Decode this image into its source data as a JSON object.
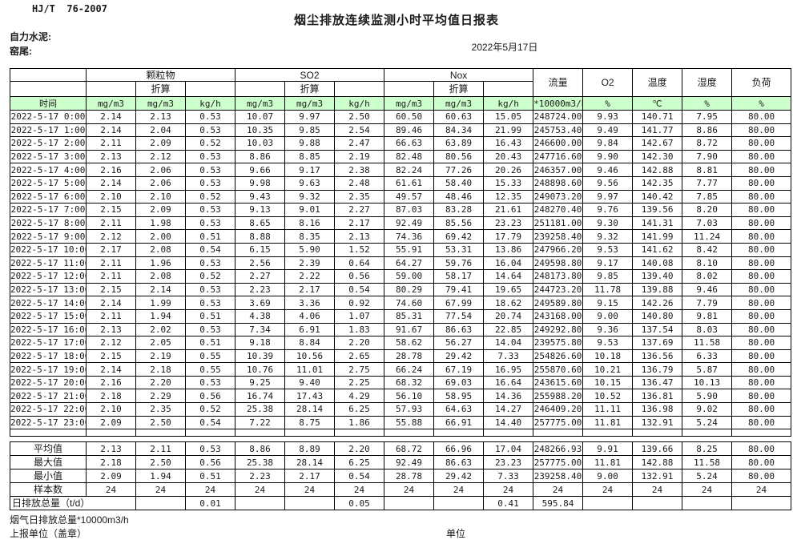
{
  "header": {
    "standard": "HJ/T  76-2007",
    "title": "烟尘排放连续监测小时平均值日报表",
    "company": "自力水泥:",
    "location": "窑尾:",
    "date": "2022年5月17日"
  },
  "colors": {
    "header_row_green": "#CCFFCC",
    "border": "#000000"
  },
  "table": {
    "col_groups": {
      "pm": "颗粒物",
      "so2": "SO2",
      "nox": "Nox",
      "flow": "流量",
      "o2": "O2",
      "temp": "温度",
      "humidity": "湿度",
      "load": "负荷"
    },
    "converted_label": "折算",
    "units": [
      "时间",
      "mg/m3",
      "mg/m3",
      "kg/h",
      "mg/m3",
      "mg/m3",
      "kg/h",
      "mg/m3",
      "mg/m3",
      "kg/h",
      "*10000m3/h",
      "%",
      "℃",
      "%",
      "%"
    ],
    "rows": [
      [
        "2022-5-17 0:00",
        "2.14",
        "2.13",
        "0.53",
        "10.07",
        "9.97",
        "2.50",
        "60.50",
        "60.63",
        "15.05",
        "248724.00",
        "9.93",
        "140.71",
        "7.95",
        "80.00"
      ],
      [
        "2022-5-17 1:00",
        "2.14",
        "2.04",
        "0.53",
        "10.35",
        "9.85",
        "2.54",
        "89.46",
        "84.34",
        "21.99",
        "245753.40",
        "9.49",
        "141.77",
        "8.86",
        "80.00"
      ],
      [
        "2022-5-17 2:00",
        "2.11",
        "2.09",
        "0.52",
        "10.03",
        "9.88",
        "2.47",
        "66.63",
        "63.89",
        "16.43",
        "246600.00",
        "9.84",
        "142.67",
        "8.72",
        "80.00"
      ],
      [
        "2022-5-17 3:00",
        "2.13",
        "2.12",
        "0.53",
        "8.86",
        "8.85",
        "2.19",
        "82.48",
        "80.56",
        "20.43",
        "247716.60",
        "9.90",
        "142.30",
        "7.90",
        "80.00"
      ],
      [
        "2022-5-17 4:00",
        "2.16",
        "2.06",
        "0.53",
        "9.66",
        "9.17",
        "2.38",
        "82.24",
        "77.26",
        "20.26",
        "246357.00",
        "9.46",
        "142.88",
        "8.81",
        "80.00"
      ],
      [
        "2022-5-17 5:00",
        "2.14",
        "2.06",
        "0.53",
        "9.98",
        "9.63",
        "2.48",
        "61.61",
        "58.40",
        "15.33",
        "248898.60",
        "9.56",
        "142.35",
        "7.77",
        "80.00"
      ],
      [
        "2022-5-17 6:00",
        "2.10",
        "2.10",
        "0.52",
        "9.43",
        "9.32",
        "2.35",
        "49.57",
        "48.46",
        "12.35",
        "249073.20",
        "9.97",
        "140.42",
        "7.85",
        "80.00"
      ],
      [
        "2022-5-17 7:00",
        "2.15",
        "2.09",
        "0.53",
        "9.13",
        "9.01",
        "2.27",
        "87.03",
        "83.28",
        "21.61",
        "248270.40",
        "9.76",
        "139.56",
        "8.20",
        "80.00"
      ],
      [
        "2022-5-17 8:00",
        "2.11",
        "1.98",
        "0.53",
        "8.65",
        "8.16",
        "2.17",
        "92.49",
        "85.56",
        "23.23",
        "251181.00",
        "9.30",
        "141.31",
        "7.03",
        "80.00"
      ],
      [
        "2022-5-17 9:00",
        "2.12",
        "2.00",
        "0.51",
        "8.88",
        "8.35",
        "2.13",
        "74.36",
        "69.42",
        "17.79",
        "239258.40",
        "9.32",
        "141.99",
        "11.24",
        "80.00"
      ],
      [
        "2022-5-17 10:00",
        "2.17",
        "2.08",
        "0.54",
        "6.15",
        "5.90",
        "1.52",
        "55.91",
        "53.31",
        "13.86",
        "247966.20",
        "9.53",
        "141.62",
        "8.42",
        "80.00"
      ],
      [
        "2022-5-17 11:00",
        "2.11",
        "1.96",
        "0.53",
        "2.56",
        "2.39",
        "0.64",
        "64.27",
        "59.76",
        "16.04",
        "249598.80",
        "9.17",
        "140.08",
        "8.10",
        "80.00"
      ],
      [
        "2022-5-17 12:00",
        "2.11",
        "2.08",
        "0.52",
        "2.27",
        "2.22",
        "0.56",
        "59.00",
        "58.17",
        "14.64",
        "248173.80",
        "9.85",
        "139.40",
        "8.02",
        "80.00"
      ],
      [
        "2022-5-17 13:00",
        "2.15",
        "2.14",
        "0.53",
        "2.23",
        "2.17",
        "0.54",
        "80.29",
        "79.41",
        "19.65",
        "244723.20",
        "11.78",
        "139.88",
        "9.46",
        "80.00"
      ],
      [
        "2022-5-17 14:00",
        "2.14",
        "1.99",
        "0.53",
        "3.69",
        "3.36",
        "0.92",
        "74.60",
        "67.99",
        "18.62",
        "249589.80",
        "9.15",
        "142.26",
        "7.79",
        "80.00"
      ],
      [
        "2022-5-17 15:00",
        "2.11",
        "1.94",
        "0.51",
        "4.38",
        "4.06",
        "1.07",
        "85.31",
        "77.54",
        "20.74",
        "243168.00",
        "9.00",
        "140.80",
        "9.81",
        "80.00"
      ],
      [
        "2022-5-17 16:00",
        "2.13",
        "2.02",
        "0.53",
        "7.34",
        "6.91",
        "1.83",
        "91.67",
        "86.63",
        "22.85",
        "249292.80",
        "9.36",
        "137.54",
        "8.03",
        "80.00"
      ],
      [
        "2022-5-17 17:00",
        "2.12",
        "2.05",
        "0.51",
        "9.18",
        "8.84",
        "2.20",
        "58.62",
        "56.27",
        "14.04",
        "239575.80",
        "9.53",
        "137.69",
        "11.58",
        "80.00"
      ],
      [
        "2022-5-17 18:00",
        "2.15",
        "2.19",
        "0.55",
        "10.39",
        "10.56",
        "2.65",
        "28.78",
        "29.42",
        "7.33",
        "254826.60",
        "10.18",
        "136.56",
        "6.33",
        "80.00"
      ],
      [
        "2022-5-17 19:00",
        "2.14",
        "2.18",
        "0.55",
        "10.76",
        "11.01",
        "2.75",
        "66.24",
        "67.19",
        "16.95",
        "255870.60",
        "10.21",
        "136.79",
        "5.87",
        "80.00"
      ],
      [
        "2022-5-17 20:00",
        "2.16",
        "2.20",
        "0.53",
        "9.25",
        "9.40",
        "2.25",
        "68.32",
        "69.03",
        "16.64",
        "243615.60",
        "10.15",
        "136.47",
        "10.13",
        "80.00"
      ],
      [
        "2022-5-17 21:00",
        "2.18",
        "2.29",
        "0.56",
        "16.74",
        "17.43",
        "4.29",
        "56.10",
        "58.95",
        "14.36",
        "255988.20",
        "10.52",
        "136.81",
        "5.90",
        "80.00"
      ],
      [
        "2022-5-17 22:00",
        "2.10",
        "2.35",
        "0.52",
        "25.38",
        "28.14",
        "6.25",
        "57.93",
        "64.63",
        "14.27",
        "246409.20",
        "11.11",
        "136.98",
        "9.02",
        "80.00"
      ],
      [
        "2022-5-17 23:00",
        "2.09",
        "2.50",
        "0.54",
        "7.22",
        "8.75",
        "1.86",
        "55.88",
        "66.91",
        "14.40",
        "257775.00",
        "11.81",
        "132.91",
        "5.24",
        "80.00"
      ]
    ],
    "summary_rows": [
      {
        "label": "平均值",
        "values": [
          "2.13",
          "2.11",
          "0.53",
          "8.86",
          "8.89",
          "2.20",
          "68.72",
          "66.96",
          "17.04",
          "248266.93",
          "9.91",
          "139.66",
          "8.25",
          "80.00"
        ]
      },
      {
        "label": "最大值",
        "values": [
          "2.18",
          "2.50",
          "0.56",
          "25.38",
          "28.14",
          "6.25",
          "92.49",
          "86.63",
          "23.23",
          "257775.00",
          "11.81",
          "142.88",
          "11.58",
          "80.00"
        ]
      },
      {
        "label": "最小值",
        "values": [
          "2.09",
          "1.94",
          "0.51",
          "2.23",
          "2.17",
          "0.54",
          "28.78",
          "29.42",
          "7.33",
          "239258.40",
          "9.00",
          "132.91",
          "5.24",
          "80.00"
        ]
      },
      {
        "label": "样本数",
        "values": [
          "24",
          "24",
          "24",
          "24",
          "24",
          "24",
          "24",
          "24",
          "24",
          "24",
          "24",
          "24",
          "24",
          "24"
        ]
      }
    ],
    "daily_total_row": {
      "label": "日排放总量（t/d）",
      "values": [
        "",
        "0.01",
        "",
        "",
        "0.05",
        "",
        "",
        "0.41",
        "595.84",
        "",
        "",
        "",
        ""
      ]
    }
  },
  "footer": {
    "note": "烟气日排放总量*10000m3/h",
    "report_unit": "上报单位（盖章）",
    "unit": "单位"
  }
}
